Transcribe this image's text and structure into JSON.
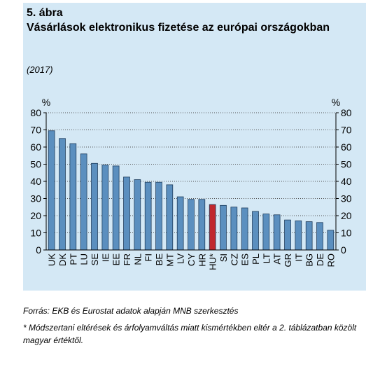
{
  "figure": {
    "number": "5. ábra",
    "title": "Vásárlások elektronikus fizetése az európai országokban",
    "subtitle": "(2017)",
    "source": "Forrás: EKB és Eurostat adatok alapján MNB szerkesztés",
    "note": "* Módszertani eltérések és árfolyamváltás miatt kismértékben eltér a 2. táblázatban közölt magyar értéktől."
  },
  "colors": {
    "bar": "#5b8fbf",
    "highlight": "#c0282e",
    "background": "#d4e8f5"
  },
  "chart_data": {
    "type": "bar",
    "title": "Vásárlások elektronikus fizetése az európai országokban",
    "ylabel_left": "%",
    "ylabel_right": "%",
    "ylim": [
      0,
      80
    ],
    "yticks": [
      0,
      10,
      20,
      30,
      40,
      50,
      60,
      70,
      80
    ],
    "grid": "horizontal-dotted",
    "categories": [
      "UK",
      "DK",
      "PT",
      "LU",
      "SE",
      "IE",
      "EE",
      "FR",
      "NL",
      "FI",
      "BE",
      "MT",
      "LV",
      "CY",
      "HR",
      "HU*",
      "SI",
      "CZ",
      "ES",
      "PL",
      "LT",
      "AT",
      "GR",
      "IT",
      "BG",
      "DE",
      "RO"
    ],
    "values": [
      69.5,
      65,
      62,
      56,
      50.5,
      49.5,
      49,
      42.5,
      41,
      39.5,
      39.5,
      38,
      31,
      29.5,
      29.5,
      26.5,
      26,
      25,
      24.5,
      22.5,
      21,
      20.5,
      17.5,
      17,
      16.5,
      16,
      11.5
    ],
    "highlight": "HU*"
  }
}
